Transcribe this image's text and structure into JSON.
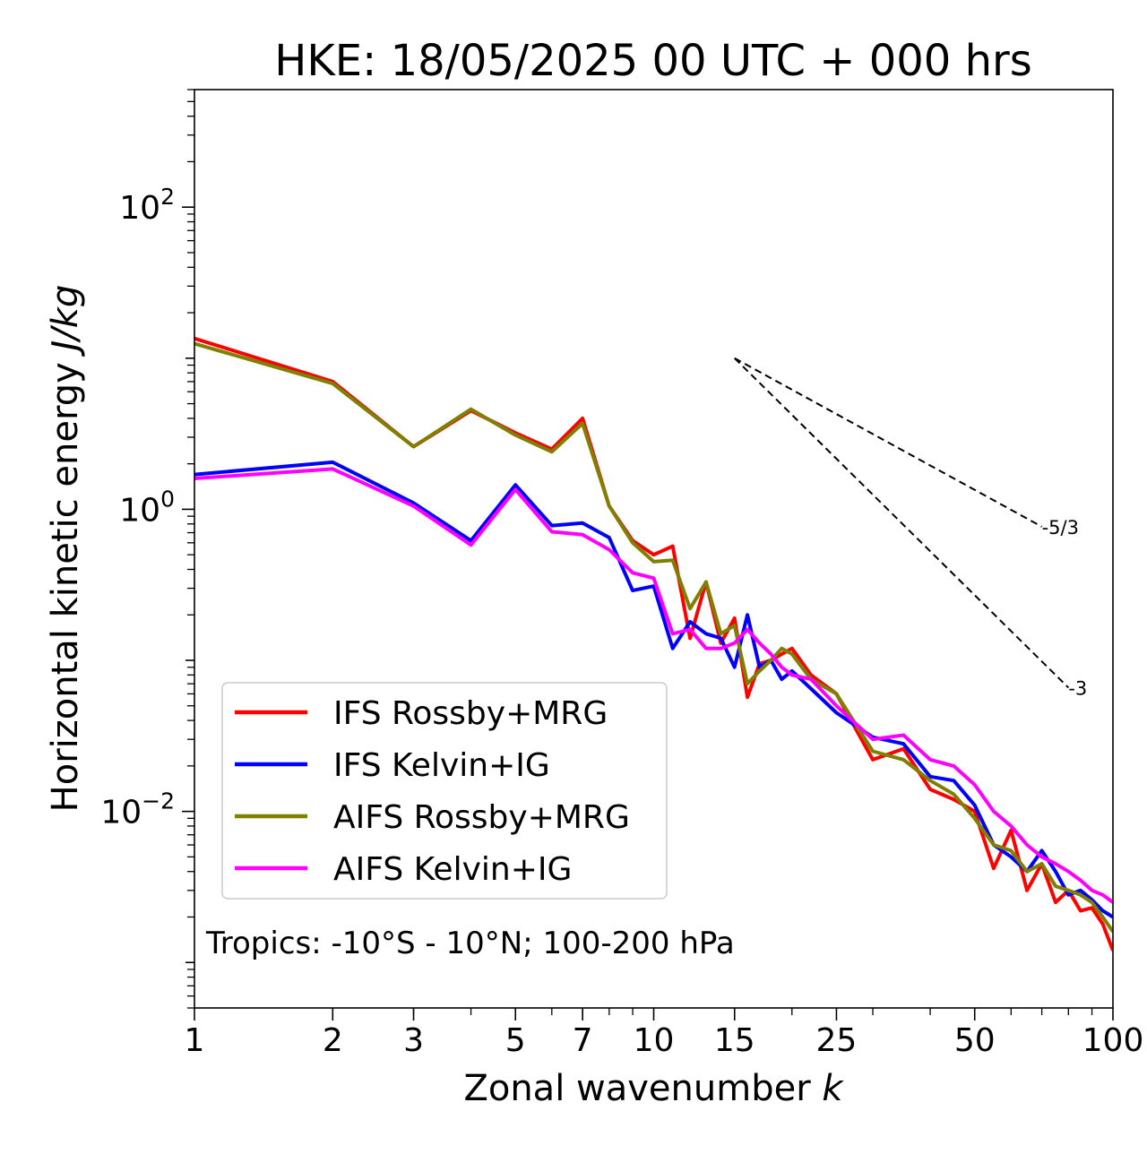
{
  "chart_data": {
    "type": "line",
    "title": "HKE: 18/05/2025 00 UTC + 000 hrs",
    "xlabel": "Zonal wavenumber k",
    "ylabel": "Horizontal kinetic energy J/kg",
    "xscale": "log",
    "yscale": "log",
    "xlim": [
      1,
      100
    ],
    "ylim": [
      0.0005,
      600
    ],
    "x_ticks": [
      1,
      2,
      3,
      5,
      7,
      10,
      15,
      25,
      50,
      100
    ],
    "y_ticks": [
      {
        "value": 0.01,
        "base": "10",
        "exp": "−2"
      },
      {
        "value": 1,
        "base": "10",
        "exp": "0"
      },
      {
        "value": 100,
        "base": "10",
        "exp": "2"
      }
    ],
    "legend_position": "lower-left",
    "annotation": "Tropics: -10°S - 10°N; 100-200 hPa",
    "series": [
      {
        "name": "IFS Rossby+MRG",
        "color": "#ff0000",
        "x": [
          1,
          2,
          3,
          4,
          5,
          6,
          7,
          8,
          9,
          10,
          11,
          12,
          13,
          14,
          15,
          16,
          17,
          18,
          19,
          20,
          22,
          25,
          30,
          35,
          40,
          45,
          50,
          55,
          60,
          65,
          70,
          75,
          80,
          85,
          90,
          95,
          100
        ],
        "y": [
          13.5,
          7.0,
          2.6,
          4.5,
          3.2,
          2.5,
          4.0,
          1.05,
          0.62,
          0.5,
          0.57,
          0.14,
          0.33,
          0.13,
          0.19,
          0.057,
          0.095,
          0.1,
          0.11,
          0.12,
          0.08,
          0.06,
          0.022,
          0.026,
          0.014,
          0.012,
          0.01,
          0.0042,
          0.0075,
          0.003,
          0.0045,
          0.0025,
          0.003,
          0.0022,
          0.0023,
          0.0018,
          0.0012
        ]
      },
      {
        "name": "IFS Kelvin+IG",
        "color": "#0000ff",
        "x": [
          1,
          2,
          3,
          4,
          5,
          6,
          7,
          8,
          9,
          10,
          11,
          12,
          13,
          14,
          15,
          16,
          17,
          18,
          19,
          20,
          22,
          25,
          30,
          35,
          40,
          45,
          50,
          55,
          60,
          65,
          70,
          75,
          80,
          85,
          90,
          95,
          100
        ],
        "y": [
          1.7,
          2.05,
          1.1,
          0.62,
          1.45,
          0.78,
          0.81,
          0.65,
          0.29,
          0.31,
          0.12,
          0.18,
          0.15,
          0.14,
          0.09,
          0.2,
          0.09,
          0.1,
          0.075,
          0.085,
          0.065,
          0.045,
          0.031,
          0.028,
          0.017,
          0.016,
          0.011,
          0.006,
          0.005,
          0.004,
          0.0055,
          0.004,
          0.0028,
          0.003,
          0.0026,
          0.0022,
          0.002
        ]
      },
      {
        "name": "AIFS Rossby+MRG",
        "color": "#808000",
        "x": [
          1,
          2,
          3,
          4,
          5,
          6,
          7,
          8,
          9,
          10,
          11,
          12,
          13,
          14,
          15,
          16,
          17,
          18,
          19,
          20,
          22,
          25,
          30,
          35,
          40,
          45,
          50,
          55,
          60,
          65,
          70,
          75,
          80,
          85,
          90,
          95,
          100
        ],
        "y": [
          12.5,
          6.8,
          2.6,
          4.6,
          3.1,
          2.4,
          3.7,
          1.05,
          0.6,
          0.45,
          0.46,
          0.22,
          0.33,
          0.15,
          0.17,
          0.07,
          0.085,
          0.1,
          0.12,
          0.11,
          0.075,
          0.06,
          0.025,
          0.022,
          0.016,
          0.013,
          0.009,
          0.006,
          0.0055,
          0.004,
          0.0045,
          0.0032,
          0.003,
          0.0028,
          0.0025,
          0.002,
          0.0016
        ]
      },
      {
        "name": "AIFS Kelvin+IG",
        "color": "#ff00ff",
        "x": [
          1,
          2,
          3,
          4,
          5,
          6,
          7,
          8,
          9,
          10,
          11,
          12,
          13,
          14,
          15,
          16,
          17,
          18,
          19,
          20,
          22,
          25,
          30,
          35,
          40,
          45,
          50,
          55,
          60,
          65,
          70,
          75,
          80,
          85,
          90,
          95,
          100
        ],
        "y": [
          1.6,
          1.85,
          1.05,
          0.58,
          1.35,
          0.71,
          0.68,
          0.54,
          0.38,
          0.35,
          0.15,
          0.16,
          0.12,
          0.12,
          0.13,
          0.16,
          0.13,
          0.11,
          0.09,
          0.08,
          0.075,
          0.05,
          0.03,
          0.032,
          0.022,
          0.02,
          0.015,
          0.01,
          0.008,
          0.006,
          0.005,
          0.0045,
          0.004,
          0.0035,
          0.003,
          0.0028,
          0.0025
        ]
      }
    ],
    "reference_slopes": [
      {
        "label": "-5/3",
        "exponent": -1.6667,
        "x_start": 15,
        "x_end": 70,
        "y_start": 10
      },
      {
        "label": "-3",
        "exponent": -3,
        "x_start": 15,
        "x_end": 80,
        "y_start": 10
      }
    ]
  }
}
